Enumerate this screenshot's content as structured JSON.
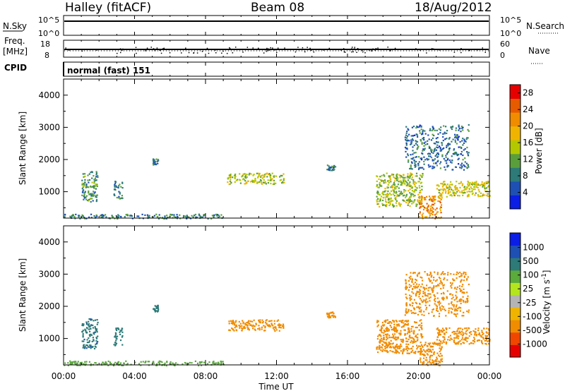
{
  "header": {
    "station": "Halley (fitACF)",
    "beam": "Beam 08",
    "date": "18/Aug/2012"
  },
  "aux_panels": {
    "nsky": {
      "label": "N.Sky",
      "ticks": [
        "10^5",
        "10^0"
      ],
      "right_ticks": [
        "10^5",
        "10^0"
      ],
      "right_label": "N.Search"
    },
    "freq": {
      "label_line1": "Freq.",
      "label_line2": "[MHz]",
      "ticks": [
        "18",
        "8"
      ],
      "right_ticks": [
        "60",
        "0"
      ],
      "right_label": "Nave"
    },
    "cpid": {
      "label": "CPID",
      "mode_text": "normal (fast) 151"
    }
  },
  "x_axis": {
    "label": "Time UT",
    "ticks": [
      "00:00",
      "04:00",
      "08:00",
      "12:00",
      "16:00",
      "20:00",
      "00:00"
    ]
  },
  "colors": {
    "power": [
      "#0a1ee6",
      "#1e50b4",
      "#2d7a78",
      "#5a9e3c",
      "#b4c800",
      "#f0b400",
      "#f08c00",
      "#e65a00",
      "#e60000"
    ],
    "velocity": [
      "#e60000",
      "#f04600",
      "#f08c00",
      "#f0b400",
      "#b4b4b4",
      "#b4e61e",
      "#5aaa3c",
      "#2d7a78",
      "#1e50b4",
      "#0a1ee6"
    ]
  },
  "chart_data": [
    {
      "type": "heatmap",
      "panel": "power",
      "ylabel": "Slant Range [km]",
      "ylim": [
        180,
        4500
      ],
      "yticks": [
        1000,
        2000,
        3000,
        4000
      ],
      "xlim": [
        0,
        24
      ],
      "colorbar": {
        "label": "Power [dB]",
        "ticks": [
          "4",
          "8",
          "12",
          "16",
          "20",
          "24",
          "28"
        ],
        "range": [
          0,
          30
        ]
      },
      "regions": [
        {
          "t0": 0.0,
          "t1": 9.0,
          "r0": 180,
          "r1": 320,
          "value": 9
        },
        {
          "t0": 1.0,
          "t1": 1.9,
          "r0": 700,
          "r1": 1650,
          "value": 10
        },
        {
          "t0": 2.8,
          "t1": 3.3,
          "r0": 800,
          "r1": 1350,
          "value": 9
        },
        {
          "t0": 5.0,
          "t1": 5.3,
          "r0": 1850,
          "r1": 2050,
          "value": 8
        },
        {
          "t0": 9.2,
          "t1": 12.4,
          "r0": 1250,
          "r1": 1600,
          "value": 15
        },
        {
          "t0": 14.8,
          "t1": 15.3,
          "r0": 1650,
          "r1": 1850,
          "value": 8
        },
        {
          "t0": 17.6,
          "t1": 20.2,
          "r0": 550,
          "r1": 1600,
          "value": 14
        },
        {
          "t0": 20.0,
          "t1": 21.3,
          "r0": 180,
          "r1": 900,
          "value": 22
        },
        {
          "t0": 21.0,
          "t1": 24.0,
          "r0": 850,
          "r1": 1350,
          "value": 16
        },
        {
          "t0": 19.2,
          "t1": 22.8,
          "r0": 1700,
          "r1": 3100,
          "value": 7
        }
      ]
    },
    {
      "type": "heatmap",
      "panel": "velocity",
      "ylabel": "Slant Range [km]",
      "ylim": [
        180,
        4500
      ],
      "yticks": [
        1000,
        2000,
        3000,
        4000
      ],
      "xlim": [
        0,
        24
      ],
      "colorbar": {
        "label": "Velocity [m s^-1]",
        "ticks": [
          "1000",
          "500",
          "100",
          "25",
          "-25",
          "-100",
          "-500",
          "-1000"
        ],
        "range": [
          -1000,
          1000
        ]
      },
      "regions": [
        {
          "t0": 0.0,
          "t1": 9.0,
          "r0": 180,
          "r1": 320,
          "value": 60
        },
        {
          "t0": 1.0,
          "t1": 1.9,
          "r0": 700,
          "r1": 1650,
          "value": 400
        },
        {
          "t0": 2.8,
          "t1": 3.3,
          "r0": 800,
          "r1": 1350,
          "value": 300
        },
        {
          "t0": 5.0,
          "t1": 5.3,
          "r0": 1850,
          "r1": 2050,
          "value": 150
        },
        {
          "t0": 9.2,
          "t1": 12.4,
          "r0": 1250,
          "r1": 1600,
          "value": -200
        },
        {
          "t0": 14.8,
          "t1": 15.3,
          "r0": 1650,
          "r1": 1850,
          "value": -150
        },
        {
          "t0": 17.6,
          "t1": 20.2,
          "r0": 550,
          "r1": 1600,
          "value": -200
        },
        {
          "t0": 20.0,
          "t1": 21.3,
          "r0": 180,
          "r1": 900,
          "value": -300
        },
        {
          "t0": 21.0,
          "t1": 24.0,
          "r0": 850,
          "r1": 1350,
          "value": -150
        },
        {
          "t0": 19.2,
          "t1": 22.8,
          "r0": 1700,
          "r1": 3100,
          "value": -250
        }
      ]
    }
  ]
}
